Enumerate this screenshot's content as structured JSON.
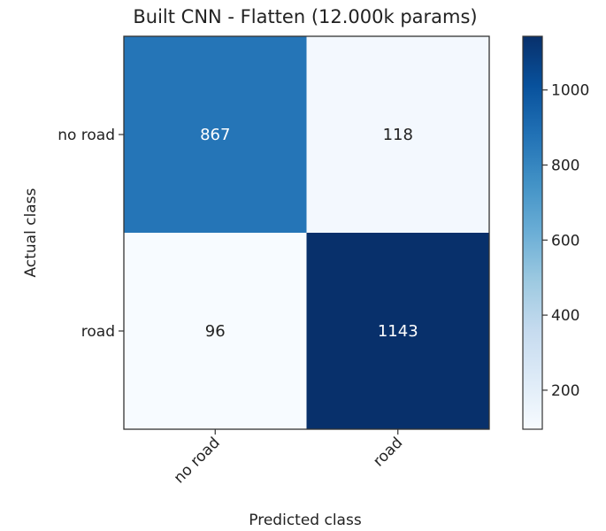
{
  "chart_data": {
    "type": "heatmap",
    "title": "Built CNN - Flatten (12.000k params)",
    "xlabel": "Predicted class",
    "ylabel": "Actual class",
    "x_categories": [
      "no road",
      "road"
    ],
    "y_categories": [
      "no road",
      "road"
    ],
    "values": [
      [
        867,
        118
      ],
      [
        96,
        1143
      ]
    ],
    "colormap": "Blues",
    "colorbar": {
      "range": [
        96,
        1143
      ],
      "ticks": [
        200,
        400,
        600,
        800,
        1000
      ]
    },
    "grid": false
  }
}
